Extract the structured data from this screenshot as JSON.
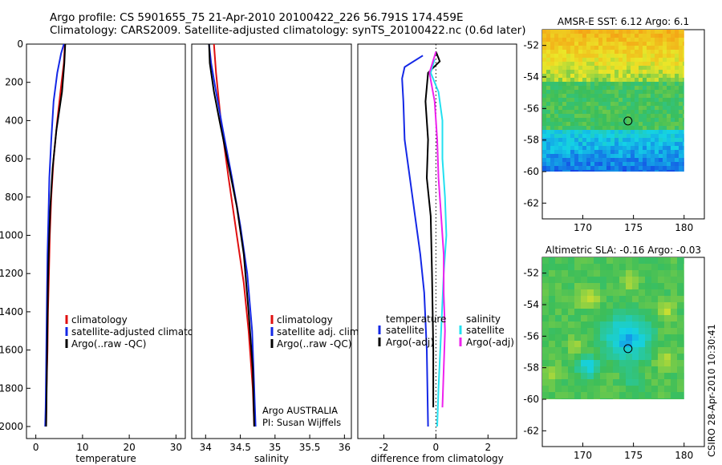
{
  "header": {
    "line1": "Argo profile: CS 5901655_75 21-Apr-2010 20100422_226 56.791S 174.459E",
    "line2": "Climatology: CARS2009. Satellite-adjusted climatology: synTS_20100422.nc (0.6d later)"
  },
  "side_label": "CSIRO 28-Apr-2010 10:30:41",
  "colors": {
    "red": "#e01010",
    "blue": "#1428e6",
    "black": "#000000",
    "cyan": "#22e0f0",
    "magenta": "#ee22ee"
  },
  "chart_data": [
    {
      "type": "line",
      "name": "temperature-profile",
      "xlabel": "temperature",
      "xlim": [
        -2,
        32
      ],
      "ylim": [
        0,
        2050
      ],
      "xticks": [
        0,
        10,
        20,
        30
      ],
      "xtick_labels": [
        "0",
        "10",
        "20",
        "30"
      ],
      "yticks": [
        0,
        200,
        400,
        600,
        800,
        1000,
        1200,
        1400,
        1600,
        1800,
        2000
      ],
      "ytick_labels": [
        "0",
        "200",
        "400",
        "600",
        "800",
        "1000",
        "1200",
        "1400",
        "1600",
        "1800",
        "2000"
      ],
      "legend": [
        "climatology",
        "satellite-adjusted climatology",
        "Argo(..raw -QC)"
      ],
      "series": [
        {
          "name": "climatology",
          "color": "red",
          "points": [
            [
              6.2,
              0
            ],
            [
              6.0,
              100
            ],
            [
              5.5,
              200
            ],
            [
              4.6,
              400
            ],
            [
              3.8,
              600
            ],
            [
              3.3,
              800
            ],
            [
              3.0,
              1000
            ],
            [
              2.8,
              1200
            ],
            [
              2.6,
              1400
            ],
            [
              2.5,
              1600
            ],
            [
              2.3,
              1800
            ],
            [
              2.2,
              2000
            ]
          ]
        },
        {
          "name": "satellite-adjusted climatology",
          "color": "blue",
          "points": [
            [
              6.0,
              0
            ],
            [
              5.4,
              50
            ],
            [
              4.6,
              150
            ],
            [
              3.8,
              300
            ],
            [
              3.3,
              500
            ],
            [
              2.9,
              700
            ],
            [
              2.7,
              900
            ],
            [
              2.5,
              1100
            ],
            [
              2.4,
              1300
            ],
            [
              2.3,
              1500
            ],
            [
              2.2,
              1700
            ],
            [
              2.1,
              1900
            ],
            [
              2.0,
              2000
            ]
          ]
        },
        {
          "name": "Argo(..raw -QC)",
          "color": "black",
          "points": [
            [
              6.3,
              0
            ],
            [
              6.1,
              100
            ],
            [
              5.6,
              250
            ],
            [
              4.4,
              450
            ],
            [
              3.6,
              650
            ],
            [
              3.1,
              850
            ],
            [
              2.8,
              1050
            ],
            [
              2.6,
              1250
            ],
            [
              2.5,
              1450
            ],
            [
              2.4,
              1650
            ],
            [
              2.3,
              1850
            ],
            [
              2.2,
              2000
            ]
          ]
        }
      ]
    },
    {
      "type": "line",
      "name": "salinity-profile",
      "xlabel": "salinity",
      "xlim": [
        33.8,
        36.1
      ],
      "ylim": [
        0,
        2050
      ],
      "xticks": [
        34,
        34.5,
        35,
        35.5,
        36
      ],
      "xtick_labels": [
        "34",
        "34.5",
        "35",
        "35.5",
        "36"
      ],
      "legend": [
        "climatology",
        "satellite adj. clim.",
        "Argo(..raw -QC)"
      ],
      "annotation": [
        "Argo AUSTRALIA",
        "PI: Susan Wijffels"
      ],
      "series": [
        {
          "name": "climatology",
          "color": "red",
          "points": [
            [
              34.12,
              0
            ],
            [
              34.15,
              150
            ],
            [
              34.22,
              400
            ],
            [
              34.33,
              700
            ],
            [
              34.45,
              1000
            ],
            [
              34.55,
              1250
            ],
            [
              34.62,
              1500
            ],
            [
              34.68,
              1800
            ],
            [
              34.7,
              2000
            ]
          ]
        },
        {
          "name": "satellite adj. clim.",
          "color": "blue",
          "points": [
            [
              34.05,
              0
            ],
            [
              34.08,
              100
            ],
            [
              34.15,
              250
            ],
            [
              34.25,
              450
            ],
            [
              34.38,
              700
            ],
            [
              34.5,
              950
            ],
            [
              34.6,
              1200
            ],
            [
              34.67,
              1500
            ],
            [
              34.7,
              1800
            ],
            [
              34.72,
              2000
            ]
          ]
        },
        {
          "name": "Argo(..raw -QC)",
          "color": "black",
          "points": [
            [
              34.05,
              0
            ],
            [
              34.06,
              100
            ],
            [
              34.12,
              250
            ],
            [
              34.2,
              400
            ],
            [
              34.34,
              650
            ],
            [
              34.45,
              850
            ],
            [
              34.55,
              1100
            ],
            [
              34.62,
              1400
            ],
            [
              34.68,
              1700
            ],
            [
              34.7,
              2000
            ]
          ]
        }
      ]
    },
    {
      "type": "line",
      "name": "difference-profile",
      "xlabel": "difference from climatology",
      "xlim": [
        -3,
        3.1
      ],
      "ylim": [
        0,
        2050
      ],
      "xticks": [
        -2,
        0,
        2
      ],
      "xtick_labels": [
        "-2",
        "0",
        "2"
      ],
      "legend_left": {
        "title": "temperature",
        "items": [
          "satellite",
          "Argo(-adj)"
        ]
      },
      "legend_right": {
        "title": "salinity",
        "items": [
          "satellite",
          "Argo(-adj)"
        ]
      },
      "series": [
        {
          "name": "temperature satellite",
          "color": "blue",
          "points": [
            [
              -0.5,
              60
            ],
            [
              -1.2,
              120
            ],
            [
              -1.3,
              180
            ],
            [
              -1.25,
              300
            ],
            [
              -1.2,
              500
            ],
            [
              -1.0,
              700
            ],
            [
              -0.8,
              900
            ],
            [
              -0.6,
              1100
            ],
            [
              -0.45,
              1300
            ],
            [
              -0.35,
              1600
            ],
            [
              -0.3,
              2000
            ]
          ]
        },
        {
          "name": "temperature Argo(-adj)",
          "color": "black",
          "points": [
            [
              0.0,
              40
            ],
            [
              0.15,
              90
            ],
            [
              -0.3,
              150
            ],
            [
              -0.4,
              300
            ],
            [
              -0.3,
              500
            ],
            [
              -0.35,
              700
            ],
            [
              -0.2,
              900
            ],
            [
              -0.15,
              1200
            ],
            [
              -0.1,
              1600
            ],
            [
              -0.1,
              1900
            ]
          ]
        },
        {
          "name": "salinity satellite",
          "color": "cyan",
          "points": [
            [
              -0.05,
              80
            ],
            [
              -0.2,
              150
            ],
            [
              0.1,
              250
            ],
            [
              0.25,
              400
            ],
            [
              0.25,
              600
            ],
            [
              0.35,
              800
            ],
            [
              0.4,
              1000
            ],
            [
              0.3,
              1200
            ],
            [
              0.2,
              1500
            ],
            [
              0.1,
              1800
            ],
            [
              0.05,
              2000
            ]
          ]
        },
        {
          "name": "salinity Argo(-adj)",
          "color": "magenta",
          "points": [
            [
              0.0,
              40
            ],
            [
              -0.25,
              150
            ],
            [
              -0.05,
              300
            ],
            [
              0.05,
              500
            ],
            [
              0.1,
              700
            ],
            [
              0.2,
              900
            ],
            [
              0.3,
              1100
            ],
            [
              0.3,
              1300
            ],
            [
              0.35,
              1500
            ],
            [
              0.3,
              1700
            ],
            [
              0.25,
              1900
            ]
          ]
        }
      ]
    },
    {
      "type": "heatmap",
      "name": "amsr-e-sst-map",
      "title": "AMSR-E SST: 6.12 Argo: 6.1",
      "xlim": [
        166,
        182
      ],
      "ylim": [
        -63,
        -51
      ],
      "xticks": [
        170,
        175,
        180
      ],
      "xtick_labels": [
        "170",
        "175",
        "180"
      ],
      "yticks": [
        -52,
        -54,
        -56,
        -58,
        -60,
        -62
      ],
      "ytick_labels": [
        "-52",
        "-54",
        "-56",
        "-58",
        "-60",
        "-62"
      ],
      "data_extent": {
        "lon": [
          166,
          180
        ],
        "lat": [
          -60,
          -51
        ]
      },
      "float_position": {
        "lon": 174.46,
        "lat": -56.79
      }
    },
    {
      "type": "heatmap",
      "name": "altimetric-sla-map",
      "title": "Altimetric SLA: -0.16 Argo: -0.03",
      "xlim": [
        166,
        182
      ],
      "ylim": [
        -63,
        -51
      ],
      "xticks": [
        170,
        175,
        180
      ],
      "xtick_labels": [
        "170",
        "175",
        "180"
      ],
      "yticks": [
        -52,
        -54,
        -56,
        -58,
        -60,
        -62
      ],
      "ytick_labels": [
        "-52",
        "-54",
        "-56",
        "-58",
        "-60",
        "-62"
      ],
      "data_extent": {
        "lon": [
          166,
          180
        ],
        "lat": [
          -60,
          -51
        ]
      },
      "float_position": {
        "lon": 174.46,
        "lat": -56.79
      }
    }
  ]
}
